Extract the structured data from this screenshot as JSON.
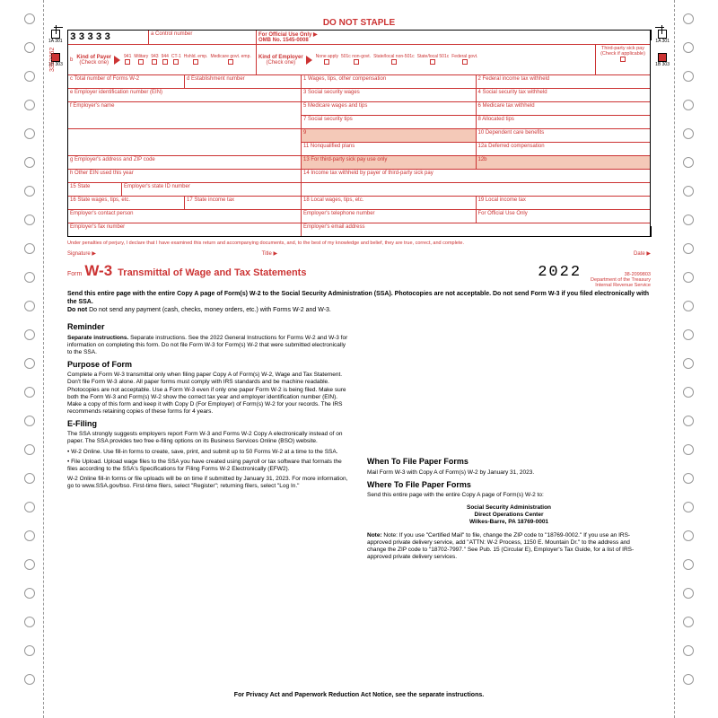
{
  "header": {
    "nostaple": "DO NOT STAPLE",
    "num33": "33333",
    "controlLabel": "a Control number",
    "officialUse": "For Official Use Only ▶",
    "omb": "OMB No. 1545-0008"
  },
  "payer": {
    "label": "b",
    "kind": "Kind of Payer",
    "check": "(Check one)",
    "opts": [
      "941",
      "Military",
      "943",
      "944",
      "CT-1",
      "Hshld. emp.",
      "Medicare govt. emp."
    ]
  },
  "employer": {
    "kind": "Kind of Employer",
    "check": "(Check one)",
    "opts": [
      "None apply",
      "501c non-govt.",
      "State/local non-501c",
      "State/local 501c",
      "Federal govt."
    ],
    "thirdparty": "Third-party sick pay",
    "tpcheck": "(Check if applicable)"
  },
  "boxes": {
    "c": "c Total number of Forms W-2",
    "d": "d Establishment number",
    "e": "e Employer identification number (EIN)",
    "f": "f Employer's name",
    "g": "g Employer's address and ZIP code",
    "h": "h Other EIN used this year",
    "1": "1 Wages, tips, other compensation",
    "2": "2 Federal income tax withheld",
    "3": "3 Social security wages",
    "4": "4 Social security tax withheld",
    "5": "5 Medicare wages and tips",
    "6": "6 Medicare tax withheld",
    "7": "7 Social security tips",
    "8": "8 Allocated tips",
    "9": "9",
    "10": "10 Dependent care benefits",
    "11": "11 Nonqualified plans",
    "12a": "12a Deferred compensation",
    "12b": "12b",
    "13": "13 For third-party sick pay use only",
    "14": "14 Income tax withheld by payer of third-party sick pay",
    "15": "15 State",
    "15b": "Employer's state ID number",
    "16": "16 State wages, tips, etc.",
    "17": "17 State income tax",
    "18": "18 Local wages, tips, etc.",
    "19": "19 Local income tax",
    "contact": "Employer's contact person",
    "phone": "Employer's telephone number",
    "fou": "For Official Use Only",
    "fax": "Employer's fax number",
    "email": "Employer's email address"
  },
  "perjury": "Under penalties of perjury, I declare that I have examined this return and accompanying documents, and, to the best of my knowledge and belief, they are true, correct, and complete.",
  "sig": {
    "s": "Signature ▶",
    "t": "Title ▶",
    "d": "Date ▶"
  },
  "title": {
    "form": "Form",
    "w3": "W-3",
    "name": "Transmittal of Wage and Tax Statements",
    "year": "2022",
    "cat": "38-2099803",
    "dept1": "Department of the Treasury",
    "dept2": "Internal Revenue Service"
  },
  "mainInstr": "Send this entire page with the entire Copy A page of Form(s) W-2 to the Social Security Administration (SSA). Photocopies are not acceptable. Do not send Form W-3 if you filed electronically with the SSA.",
  "mainInstr2": "Do not send any payment (cash, checks, money orders, etc.) with Forms W-2 and W-3.",
  "left": {
    "h1": "Reminder",
    "p1": "Separate instructions. See the 2022 General Instructions for Forms W-2 and W-3 for information on completing this form. Do not file Form W-3 for Form(s) W-2 that were submitted electronically to the SSA.",
    "h2": "Purpose of Form",
    "p2": "Complete a Form W-3 transmittal only when filing paper Copy A of Form(s) W-2, Wage and Tax Statement. Don't file Form W-3 alone. All paper forms must comply with IRS standards and be machine readable. Photocopies are not acceptable. Use a Form W-3 even if only one paper Form W-2 is being filed. Make sure both the Form W-3 and Form(s) W-2 show the correct tax year and employer identification number (EIN). Make a copy of this form and keep it with Copy D (For Employer) of Form(s) W-2 for your records. The IRS recommends retaining copies of these forms for 4 years.",
    "h3": "E-Filing",
    "p3": "The SSA strongly suggests employers report Form W-3 and Forms W-2 Copy A electronically instead of on paper. The SSA provides two free e-filing options on its Business Services Online (BSO) website.",
    "p4": "• W-2 Online. Use fill-in forms to create, save, print, and submit up to 50 Forms W-2 at a time to the SSA.",
    "p5": "• File Upload. Upload wage files to the SSA you have created using payroll or tax software that formats the files according to the SSA's Specifications for Filing Forms W-2 Electronically (EFW2).",
    "p6": "W-2 Online fill-in forms or file uploads will be on time if submitted by January 31, 2023. For more information, go to www.SSA.gov/bso. First-time filers, select \"Register\"; returning filers, select \"Log In.\""
  },
  "right": {
    "h1": "When To File Paper Forms",
    "p1": "Mail Form W-3 with Copy A of Form(s) W-2 by January 31, 2023.",
    "h2": "Where To File Paper Forms",
    "p2": "Send this entire page with the entire Copy A page of Form(s) W-2 to:",
    "addr1": "Social Security Administration",
    "addr2": "Direct Operations Center",
    "addr3": "Wilkes-Barre, PA 18769-0001",
    "note": "Note: If you use \"Certified Mail\" to file, change the ZIP code to \"18769-0002.\" If you use an IRS-approved private delivery service, add \"ATTN: W-2 Process, 1150 E. Mountain Dr.\" to the address and change the ZIP code to \"18702-7997.\" See Pub. 15 (Circular E), Employer's Tax Guide, for a list of IRS-approved private delivery services."
  },
  "footer": "For Privacy Act and Paperwork Reduction Act Notice, see the separate instructions.",
  "sideid": "3353862",
  "tagA": "1A 301",
  "tagB": "1B 303"
}
